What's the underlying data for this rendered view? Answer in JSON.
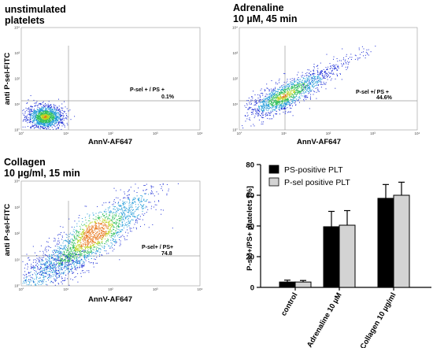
{
  "chart_data": [
    {
      "type": "scatter",
      "title_lines": [
        "unstimulated",
        "platelets"
      ],
      "xlabel": "",
      "ylabel": "anti P-sel-FITC",
      "quadrant_label": "P-sel + / PS +",
      "quadrant_value": "0.1%",
      "tick_labels": [
        "10°",
        "10¹",
        "10²",
        "10³",
        "10⁴"
      ],
      "density": "cluster low-left"
    },
    {
      "type": "scatter",
      "title_lines": [
        "Adrenaline",
        "10 µM, 45 min"
      ],
      "xlabel": "AnnV-AF647",
      "ylabel": "",
      "quadrant_label": "P-sel +/ PS +",
      "quadrant_value": "44.6%",
      "tick_labels": [
        "10°",
        "10¹",
        "10²",
        "10³",
        "10⁴"
      ],
      "density": "diagonal elongated"
    },
    {
      "type": "scatter",
      "title_lines": [
        "Collagen",
        "10 µg/ml, 15 min"
      ],
      "xlabel": "AnnV-AF647",
      "ylabel": "anti P-sel-FITC",
      "quadrant_label": "P-sel+ / PS+",
      "quadrant_value": "74.8",
      "tick_labels": [
        "10°",
        "10¹",
        "10²",
        "10³",
        "10⁴"
      ],
      "density": "diagonal wide"
    },
    {
      "type": "bar",
      "categories": [
        "control",
        "Adrenaline 10 µM",
        "Collagen 10 µg/ml"
      ],
      "series": [
        {
          "name": "PS-positive PLT",
          "values": [
            3.5,
            39.5,
            58
          ],
          "errors": [
            1.2,
            10,
            9
          ],
          "color": "#000000"
        },
        {
          "name": "P-sel positive PLT",
          "values": [
            3.5,
            40.5,
            60
          ],
          "errors": [
            1.0,
            9.5,
            8.5
          ],
          "color": "#d3d3d3"
        }
      ],
      "ylabel": "P-sel+/PS+ platelets [%]",
      "ylim": [
        0,
        80
      ],
      "yticks": [
        "0",
        "20",
        "40",
        "60",
        "80"
      ],
      "legend": "top-left"
    }
  ],
  "first_xlabel": "AnnV-AF647"
}
